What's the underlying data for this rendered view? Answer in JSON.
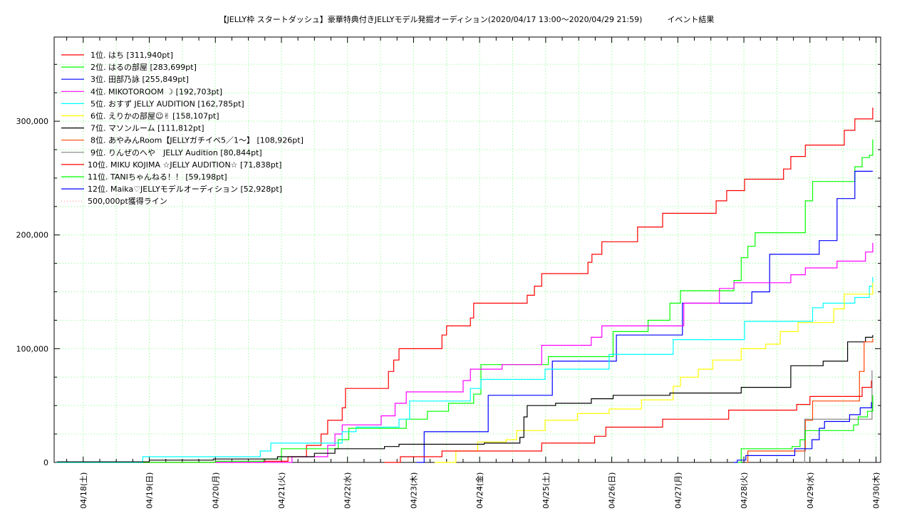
{
  "chart_data": {
    "type": "line",
    "title": "【JELLY枠 スタートダッシュ】豪華特典付きJELLYモデル発掘オーディション(2020/04/17 13:00〜2020/04/29 21:59)",
    "title_suffix": "イベント結果",
    "x_unit": "days since 04/18 00:00",
    "xlim": [
      -0.44,
      12.07
    ],
    "ylim": [
      0,
      374000
    ],
    "y_ticks": [
      0,
      100000,
      200000,
      300000
    ],
    "y_tick_labels": [
      "0",
      "100,000",
      "200,000",
      "300,000"
    ],
    "x_ticks": [
      0,
      1,
      2,
      3,
      4,
      5,
      6,
      7,
      8,
      9,
      10,
      11,
      12
    ],
    "x_tick_labels": [
      "04/18(土)",
      "04/19(日)",
      "04/20(月)",
      "04/21(火)",
      "04/22(水)",
      "04/23(木)",
      "04/24(金)",
      "04/25(土)",
      "04/26(日)",
      "04/27(月)",
      "04/28(火)",
      "04/29(水)",
      "04/30(木)"
    ],
    "grid": true,
    "legend_position": "top-left",
    "series": [
      {
        "name": "1位. はち [311,940pt]",
        "color": "#ff0000",
        "points": [
          [
            -0.4,
            0
          ],
          [
            2.73,
            1
          ],
          [
            3.1,
            5
          ],
          [
            3.38,
            15
          ],
          [
            3.6,
            25
          ],
          [
            3.7,
            37
          ],
          [
            3.92,
            48
          ],
          [
            3.97,
            65
          ],
          [
            4.56,
            65
          ],
          [
            4.62,
            80
          ],
          [
            4.7,
            90
          ],
          [
            4.78,
            100
          ],
          [
            5.37,
            100
          ],
          [
            5.43,
            112
          ],
          [
            5.5,
            120
          ],
          [
            5.86,
            127
          ],
          [
            5.91,
            140
          ],
          [
            6.67,
            140
          ],
          [
            6.72,
            147
          ],
          [
            6.83,
            155
          ],
          [
            6.94,
            166
          ],
          [
            7.58,
            166
          ],
          [
            7.64,
            176
          ],
          [
            7.7,
            183
          ],
          [
            7.85,
            194
          ],
          [
            8.34,
            194
          ],
          [
            8.39,
            207
          ],
          [
            8.77,
            219
          ],
          [
            9.53,
            219
          ],
          [
            9.58,
            230
          ],
          [
            9.74,
            239
          ],
          [
            10.01,
            249
          ],
          [
            10.55,
            249
          ],
          [
            10.6,
            258
          ],
          [
            10.71,
            269
          ],
          [
            10.93,
            279
          ],
          [
            11.47,
            279
          ],
          [
            11.52,
            292
          ],
          [
            11.68,
            302
          ],
          [
            11.92,
            302
          ],
          [
            11.95,
            312
          ]
        ]
      },
      {
        "name": "2位. はるの部屋 [283,699pt]",
        "color": "#00ff00",
        "points": [
          [
            -0.4,
            0
          ],
          [
            2.0,
            1
          ],
          [
            2.73,
            3
          ],
          [
            3.0,
            12
          ],
          [
            3.86,
            20
          ],
          [
            4.02,
            30
          ],
          [
            4.89,
            38
          ],
          [
            5.21,
            45
          ],
          [
            5.53,
            52
          ],
          [
            5.91,
            60
          ],
          [
            6.02,
            86
          ],
          [
            6.94,
            86
          ],
          [
            7.04,
            93
          ],
          [
            7.91,
            93
          ],
          [
            8.02,
            115
          ],
          [
            8.39,
            115
          ],
          [
            8.55,
            125
          ],
          [
            8.88,
            140
          ],
          [
            9.04,
            151
          ],
          [
            9.74,
            151
          ],
          [
            9.85,
            160
          ],
          [
            9.96,
            180
          ],
          [
            10.06,
            190
          ],
          [
            10.17,
            202
          ],
          [
            10.87,
            202
          ],
          [
            10.93,
            230
          ],
          [
            11.04,
            247
          ],
          [
            11.63,
            247
          ],
          [
            11.68,
            260
          ],
          [
            11.79,
            268
          ],
          [
            11.9,
            270
          ],
          [
            11.95,
            284
          ]
        ]
      },
      {
        "name": "3位. 田部乃詠 [255,849pt]",
        "color": "#0000ff",
        "points": [
          [
            5.05,
            0
          ],
          [
            5.16,
            27
          ],
          [
            6.07,
            27
          ],
          [
            6.13,
            59
          ],
          [
            7.04,
            59
          ],
          [
            7.1,
            89
          ],
          [
            8.02,
            89
          ],
          [
            8.07,
            112
          ],
          [
            8.99,
            112
          ],
          [
            9.07,
            140
          ],
          [
            10.06,
            140
          ],
          [
            10.12,
            150
          ],
          [
            10.39,
            183
          ],
          [
            11.09,
            183
          ],
          [
            11.14,
            195
          ],
          [
            11.36,
            195
          ],
          [
            11.41,
            232
          ],
          [
            11.63,
            232
          ],
          [
            11.68,
            256
          ],
          [
            11.95,
            256
          ]
        ]
      },
      {
        "name": "4位. MIKOTOROOM ☽ [192,703pt]",
        "color": "#ff00ff",
        "points": [
          [
            2.0,
            0
          ],
          [
            3.16,
            5
          ],
          [
            3.7,
            15
          ],
          [
            3.81,
            25
          ],
          [
            3.92,
            33
          ],
          [
            4.46,
            33
          ],
          [
            4.51,
            41
          ],
          [
            4.72,
            52
          ],
          [
            4.89,
            62
          ],
          [
            5.43,
            62
          ],
          [
            5.75,
            72
          ],
          [
            5.86,
            82
          ],
          [
            6.34,
            86
          ],
          [
            6.72,
            86
          ],
          [
            6.94,
            103
          ],
          [
            7.53,
            103
          ],
          [
            7.69,
            110
          ],
          [
            7.85,
            120
          ],
          [
            8.82,
            120
          ],
          [
            9.09,
            140
          ],
          [
            9.53,
            140
          ],
          [
            9.63,
            153
          ],
          [
            9.85,
            158
          ],
          [
            10.5,
            158
          ],
          [
            10.71,
            165
          ],
          [
            10.93,
            171
          ],
          [
            11.36,
            171
          ],
          [
            11.41,
            177
          ],
          [
            11.74,
            177
          ],
          [
            11.84,
            185
          ],
          [
            11.95,
            193
          ]
        ]
      },
      {
        "name": "5位. おすず JELLY AUDITION [162,785pt]",
        "color": "#00ffff",
        "points": [
          [
            -0.4,
            0
          ],
          [
            0.9,
            5
          ],
          [
            2.62,
            5
          ],
          [
            2.68,
            10
          ],
          [
            2.84,
            17
          ],
          [
            3.81,
            17
          ],
          [
            3.92,
            27
          ],
          [
            4.13,
            31
          ],
          [
            4.72,
            31
          ],
          [
            4.78,
            38
          ],
          [
            4.94,
            54
          ],
          [
            5.64,
            54
          ],
          [
            5.86,
            65
          ],
          [
            6.02,
            73
          ],
          [
            6.94,
            73
          ],
          [
            6.99,
            82
          ],
          [
            7.91,
            82
          ],
          [
            7.96,
            95
          ],
          [
            8.88,
            95
          ],
          [
            8.93,
            108
          ],
          [
            9.9,
            108
          ],
          [
            10.01,
            124
          ],
          [
            10.93,
            124
          ],
          [
            11.04,
            136
          ],
          [
            11.2,
            140
          ],
          [
            11.68,
            145
          ],
          [
            11.9,
            155
          ],
          [
            11.95,
            163
          ]
        ]
      },
      {
        "name": "6位. えりかの部屋☺︎✌︎ [158,107pt]",
        "color": "#ffff00",
        "points": [
          [
            5.32,
            0
          ],
          [
            5.64,
            10
          ],
          [
            5.97,
            18
          ],
          [
            6.4,
            20
          ],
          [
            6.56,
            28
          ],
          [
            6.99,
            37
          ],
          [
            7.48,
            43
          ],
          [
            7.96,
            47
          ],
          [
            8.45,
            55
          ],
          [
            8.93,
            67
          ],
          [
            9.04,
            75
          ],
          [
            9.31,
            82
          ],
          [
            9.53,
            90
          ],
          [
            9.96,
            100
          ],
          [
            10.33,
            104
          ],
          [
            10.55,
            115
          ],
          [
            10.82,
            123
          ],
          [
            11.25,
            123
          ],
          [
            11.36,
            135
          ],
          [
            11.52,
            148
          ],
          [
            11.95,
            158
          ]
        ]
      },
      {
        "name": "7位. マソンルーム [111,812pt]",
        "color": "#000000",
        "points": [
          [
            -0.4,
            0.5
          ],
          [
            1.0,
            2
          ],
          [
            1.97,
            3
          ],
          [
            2.94,
            5
          ],
          [
            3.5,
            8
          ],
          [
            3.81,
            12
          ],
          [
            4.56,
            14
          ],
          [
            4.78,
            16
          ],
          [
            6.07,
            17
          ],
          [
            6.61,
            22
          ],
          [
            6.67,
            40
          ],
          [
            6.72,
            50
          ],
          [
            7.15,
            52
          ],
          [
            7.69,
            56
          ],
          [
            8.02,
            59
          ],
          [
            8.88,
            61
          ],
          [
            9.53,
            61
          ],
          [
            9.96,
            66
          ],
          [
            10.6,
            66
          ],
          [
            10.71,
            85
          ],
          [
            11.2,
            89
          ],
          [
            11.57,
            106
          ],
          [
            11.84,
            110
          ],
          [
            11.95,
            112
          ]
        ]
      },
      {
        "name": "8位. あやみんRoom【JELLYガチイベ5／1〜】 [108,926pt]",
        "color": "#ff4500",
        "points": [
          [
            10.04,
            0
          ],
          [
            10.06,
            10
          ],
          [
            10.84,
            10
          ],
          [
            10.93,
            37
          ],
          [
            11.04,
            54
          ],
          [
            11.65,
            54
          ],
          [
            11.75,
            80
          ],
          [
            11.82,
            106
          ],
          [
            11.95,
            109
          ]
        ]
      },
      {
        "name": "9位. りんぜのへや　JELLY Audition [80,844pt]",
        "color": "#808080",
        "points": [
          [
            10.91,
            0
          ],
          [
            10.92,
            38
          ],
          [
            11.92,
            38
          ],
          [
            11.94,
            81
          ]
        ]
      },
      {
        "name": "10位. MIKU KOJIMA ☆JELLY AUDITION☆ [71,838pt]",
        "color": "#ff0000",
        "points": [
          [
            4.56,
            0
          ],
          [
            4.8,
            5
          ],
          [
            5.43,
            10
          ],
          [
            6.94,
            17
          ],
          [
            7.74,
            23
          ],
          [
            7.91,
            31
          ],
          [
            8.77,
            38
          ],
          [
            9.77,
            46
          ],
          [
            10.8,
            51
          ],
          [
            11.0,
            58
          ],
          [
            11.79,
            66
          ],
          [
            11.93,
            72
          ]
        ]
      },
      {
        "name": "11位. TANIちゃんねる！！ [59,198pt]",
        "color": "#00ff00",
        "points": [
          [
            9.9,
            0
          ],
          [
            9.96,
            12
          ],
          [
            10.73,
            14
          ],
          [
            10.85,
            20
          ],
          [
            10.93,
            28
          ],
          [
            11.66,
            33
          ],
          [
            11.73,
            40
          ],
          [
            11.87,
            45
          ],
          [
            11.95,
            59
          ]
        ]
      },
      {
        "name": "12位. Maika♡JELLYモデルオーディション [52,928pt]",
        "color": "#0000ff",
        "points": [
          [
            9.85,
            0
          ],
          [
            9.9,
            2
          ],
          [
            10.03,
            6
          ],
          [
            10.77,
            12
          ],
          [
            11.03,
            20
          ],
          [
            11.14,
            30
          ],
          [
            11.22,
            36
          ],
          [
            11.55,
            36
          ],
          [
            11.6,
            42
          ],
          [
            11.76,
            48
          ],
          [
            11.93,
            53
          ]
        ]
      }
    ],
    "threshold": {
      "name": "500,000pt獲得ライン",
      "value": 500000,
      "color": "#ff8080"
    }
  }
}
